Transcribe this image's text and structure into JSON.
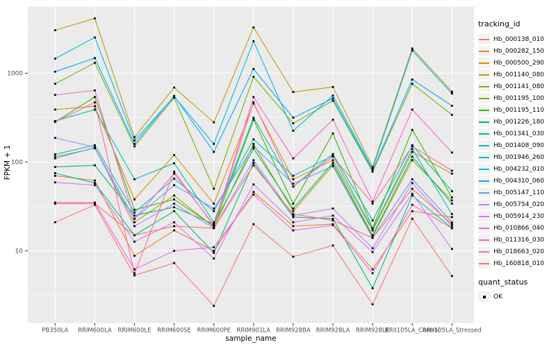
{
  "chart_data": {
    "type": "line",
    "title": "",
    "xlabel": "sample_name",
    "ylabel": "FPKM + 1",
    "y_scale": "log10",
    "y_ticks": [
      10,
      100,
      1000
    ],
    "y_minor_ticks_log10": [
      0.5,
      1.5,
      2.5,
      3.5
    ],
    "y_domain_log10": [
      0.19,
      3.74
    ],
    "grid": true,
    "legend_position": "right",
    "legend_color_title": "tracking_id",
    "legend_shape_title": "quant_status",
    "legend_shape_items": [
      "OK"
    ],
    "point_color": "#000000",
    "categories": [
      "PB350LA",
      "RRIM600LA",
      "RRIM600LE",
      "RRIM600SE",
      "RRIM600PE",
      "RRIM901LA",
      "RRIM928BA",
      "RRIM928LA",
      "RRIM928LE",
      "RRII105LA_Control",
      "RRII105LA_Stressed"
    ],
    "series": [
      {
        "name": "Hb_000138_010",
        "color": "#F8766D",
        "values": [
          21,
          33,
          5.3,
          7.3,
          2.4,
          20,
          8.6,
          11.5,
          2.5,
          23,
          5.2
        ]
      },
      {
        "name": "Hb_000282_150",
        "color": "#EA8331",
        "values": [
          70,
          62,
          8.8,
          17,
          10,
          46,
          19,
          20,
          6.2,
          28,
          24
        ]
      },
      {
        "name": "Hb_000500_290",
        "color": "#D89000",
        "values": [
          390,
          425,
          38,
          120,
          34,
          455,
          64,
          105,
          17,
          130,
          74
        ]
      },
      {
        "name": "Hb_001140_080",
        "color": "#C09B00",
        "values": [
          3050,
          4140,
          190,
          690,
          280,
          3280,
          615,
          700,
          88,
          1900,
          620
        ]
      },
      {
        "name": "Hb_001141_080",
        "color": "#A3A500",
        "values": [
          115,
          143,
          21,
          42,
          18.5,
          160,
          28,
          92,
          14.5,
          105,
          37
        ]
      },
      {
        "name": "Hb_001195_100",
        "color": "#7CAE00",
        "values": [
          760,
          1310,
          150,
          530,
          50,
          910,
          273,
          490,
          78,
          760,
          340
        ]
      },
      {
        "name": "Hb_001195_110",
        "color": "#39B600",
        "values": [
          283,
          540,
          29,
          38,
          19,
          300,
          34,
          210,
          18,
          230,
          40
        ]
      },
      {
        "name": "Hb_001226_180",
        "color": "#00BB4E",
        "values": [
          88,
          92,
          25,
          31,
          20,
          142,
          30,
          98,
          15,
          115,
          34
        ]
      },
      {
        "name": "Hb_001341_030",
        "color": "#00BF7D",
        "values": [
          75,
          58,
          15,
          28,
          9.5,
          98,
          24,
          23,
          3.8,
          42,
          18
        ]
      },
      {
        "name": "Hb_001408_090",
        "color": "#00C1A3",
        "values": [
          290,
          390,
          64,
          97,
          21,
          315,
          53,
          123,
          22,
          155,
          47
        ]
      },
      {
        "name": "Hb_001946_260",
        "color": "#00BFC4",
        "values": [
          122,
          155,
          27,
          65,
          28,
          180,
          70,
          118,
          17.5,
          140,
          26
        ]
      },
      {
        "name": "Hb_004232_010",
        "color": "#00B8E7",
        "values": [
          1460,
          2530,
          175,
          545,
          160,
          2290,
          225,
          560,
          84,
          1800,
          590
        ]
      },
      {
        "name": "Hb_004310_060",
        "color": "#00ACFC",
        "values": [
          1040,
          1480,
          160,
          555,
          130,
          1115,
          315,
          520,
          80,
          850,
          430
        ]
      },
      {
        "name": "Hb_005147_110",
        "color": "#619CFF",
        "values": [
          110,
          145,
          23,
          55,
          30,
          150,
          57,
          90,
          14,
          64,
          21
        ]
      },
      {
        "name": "Hb_005754_020",
        "color": "#AE87FF",
        "values": [
          187,
          147,
          19,
          34,
          18,
          105,
          25,
          30,
          10.7,
          58,
          19
        ]
      },
      {
        "name": "Hb_005914_230",
        "color": "#DB72FB",
        "values": [
          59,
          55,
          12.7,
          21,
          8.2,
          56,
          21,
          25,
          9.7,
          44,
          10.5
        ]
      },
      {
        "name": "Hb_010866_040",
        "color": "#F564E3",
        "values": [
          35,
          35,
          6.2,
          10,
          11,
          43,
          17,
          19.5,
          5.6,
          33,
          18
        ]
      },
      {
        "name": "Hb_011316_030",
        "color": "#FF61C9",
        "values": [
          570,
          640,
          23,
          74,
          19.5,
          540,
          110,
          300,
          36,
          390,
          128
        ]
      },
      {
        "name": "Hb_018663_020",
        "color": "#FF689E",
        "values": [
          283,
          470,
          5.6,
          78,
          19,
          470,
          53,
          115,
          34,
          150,
          80
        ]
      },
      {
        "name": "Hb_160818_010",
        "color": "#FF6C67",
        "values": [
          34,
          34,
          15,
          19,
          18,
          92,
          26,
          22,
          14,
          50,
          20
        ]
      }
    ],
    "colors": {
      "panel_bg": "#EBEBEB",
      "grid": "#FFFFFF",
      "axis_text": "#4D4D4D",
      "tick": "#333333",
      "legend_key_bg": "#F2F2F2",
      "background": "#FFFFFF"
    }
  }
}
